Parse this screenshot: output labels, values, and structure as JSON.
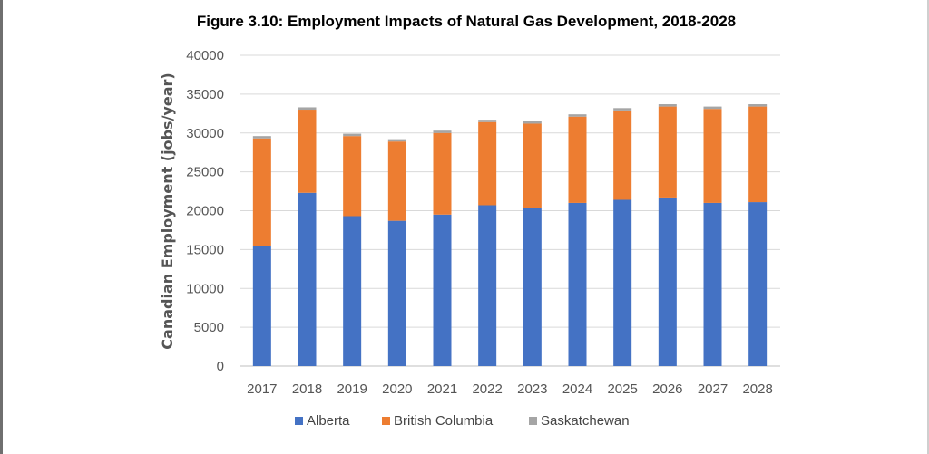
{
  "chart_data": {
    "type": "bar",
    "stacked": true,
    "title": "Figure 3.10:  Employment Impacts of Natural Gas Development, 2018-2028",
    "xlabel": "",
    "ylabel": "Canadian Employment (jobs/year)",
    "ylim": [
      0,
      40000
    ],
    "yticks": [
      0,
      5000,
      10000,
      15000,
      20000,
      25000,
      30000,
      35000,
      40000
    ],
    "grid": true,
    "legend_position": "bottom",
    "categories": [
      "2017",
      "2018",
      "2019",
      "2020",
      "2021",
      "2022",
      "2023",
      "2024",
      "2025",
      "2026",
      "2027",
      "2028"
    ],
    "series": [
      {
        "name": "Alberta",
        "color": "#4472C4",
        "values": [
          15400,
          22300,
          19300,
          18700,
          19500,
          20700,
          20300,
          21000,
          21400,
          21700,
          21000,
          21100
        ]
      },
      {
        "name": "British Columbia",
        "color": "#ED7D31",
        "values": [
          13900,
          10700,
          10300,
          10200,
          10500,
          10700,
          10900,
          11100,
          11500,
          11700,
          12100,
          12300
        ]
      },
      {
        "name": "Saskatchewan",
        "color": "#A5A5A5",
        "values": [
          300,
          300,
          300,
          300,
          300,
          300,
          300,
          300,
          300,
          300,
          300,
          300
        ]
      }
    ]
  }
}
